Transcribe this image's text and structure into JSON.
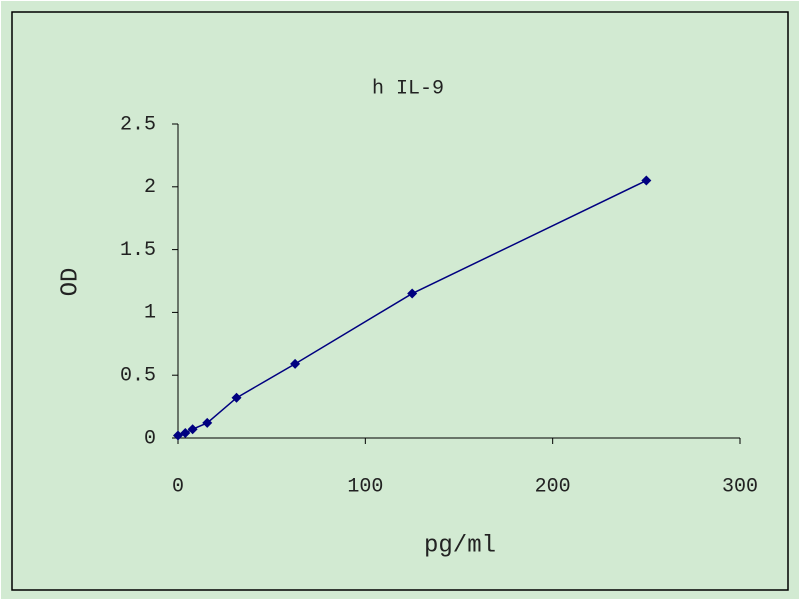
{
  "chart_data": {
    "type": "line",
    "title": "h IL-9",
    "x_label": "pg/ml",
    "y_label": "OD",
    "x": [
      0,
      3.9,
      7.8,
      15.6,
      31.25,
      62.5,
      125,
      250
    ],
    "series": [
      {
        "color": "#000080",
        "values": [
          0.02,
          0.04,
          0.07,
          0.12,
          0.32,
          0.59,
          1.15,
          2.05
        ]
      }
    ],
    "xlim": [
      0,
      300
    ],
    "xticks": [
      0,
      100,
      200,
      300
    ],
    "ylim": [
      0,
      2.5
    ],
    "yticks": [
      0,
      0.5,
      1,
      1.5,
      2,
      2.5
    ],
    "markers": true
  }
}
